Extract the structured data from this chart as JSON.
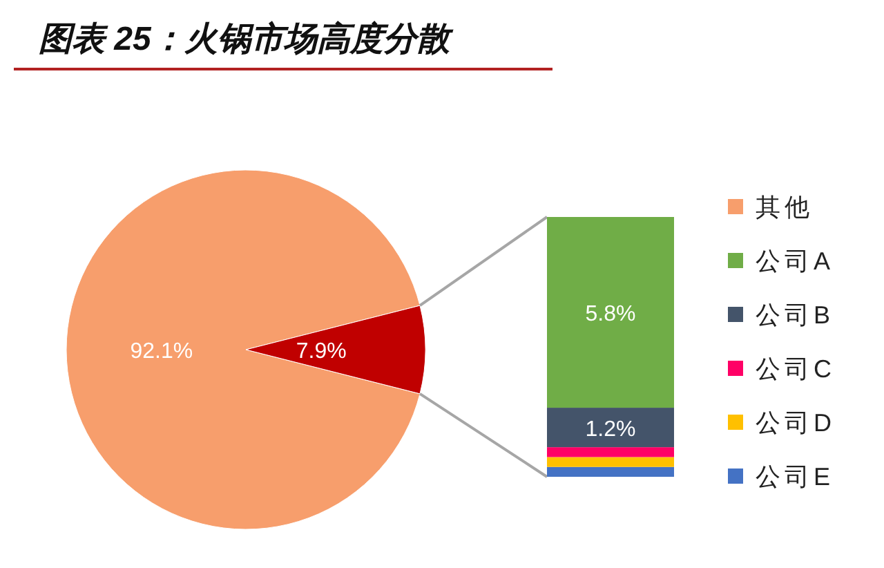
{
  "chart_data": [
    {
      "type": "pie",
      "title": "图表 25：火锅市场高度分散",
      "categories": [
        "其他",
        null
      ],
      "values": [
        92.1,
        7.9
      ],
      "value_labels": [
        "92.1%",
        "7.9%"
      ],
      "colors": [
        "#f79e6c",
        "#c00000"
      ],
      "legend": "right"
    },
    {
      "type": "bar",
      "stacked": true,
      "categories": [
        null
      ],
      "ylim": [
        0,
        7.9
      ],
      "legend": "right",
      "series": [
        {
          "name": "公司E",
          "color": "#4472c4",
          "values": [
            0.3
          ],
          "value_labels": [
            null
          ]
        },
        {
          "name": "公司D",
          "color": "#ffc000",
          "values": [
            0.3
          ],
          "value_labels": [
            null
          ]
        },
        {
          "name": "公司C",
          "color": "#ff0066",
          "values": [
            0.3
          ],
          "value_labels": [
            null
          ]
        },
        {
          "name": "公司B",
          "color": "#44546a",
          "values": [
            1.2
          ],
          "value_labels": [
            "1.2%"
          ]
        },
        {
          "name": "公司A",
          "color": "#70ad47",
          "values": [
            5.8
          ],
          "value_labels": [
            "5.8%"
          ]
        }
      ]
    }
  ]
}
